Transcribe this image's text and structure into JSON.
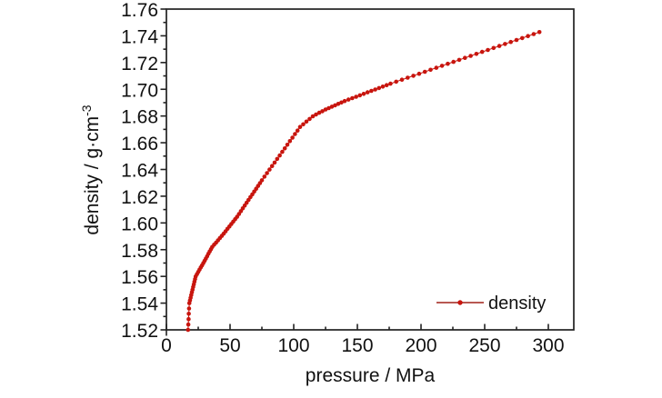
{
  "figure": {
    "background": "#ffffff",
    "frame_color": "#222222",
    "text_color": "#111111"
  },
  "chart_data": {
    "type": "scatter",
    "title": "",
    "xlabel": "pressure / MPa",
    "ylabel": "density / g·cm⁻³",
    "ylabel_base": "density / g·cm",
    "ylabel_sup": "-3",
    "xlim": [
      0,
      320
    ],
    "ylim": [
      1.52,
      1.76
    ],
    "x_major": 50,
    "x_minor": 25,
    "y_major": 0.02,
    "y_minor": 0.01,
    "grid": false,
    "x_ticks": [
      "0",
      "50",
      "100",
      "150",
      "200",
      "250",
      "300"
    ],
    "y_ticks": [
      "1.52",
      "1.54",
      "1.56",
      "1.58",
      "1.60",
      "1.62",
      "1.64",
      "1.66",
      "1.68",
      "1.70",
      "1.72",
      "1.74",
      "1.76"
    ],
    "legend": {
      "position": "bottom-right",
      "entries": [
        {
          "label": "density",
          "marker": "line-dot",
          "color": "#c8150e"
        }
      ]
    },
    "series": [
      {
        "name": "density",
        "marker_color": "#c8150e",
        "line_color": "#a02018",
        "points": [
          [
            17,
            1.52
          ],
          [
            17.2,
            1.524
          ],
          [
            17.4,
            1.528
          ],
          [
            17.6,
            1.532
          ],
          [
            17.8,
            1.536
          ],
          [
            18,
            1.54
          ],
          [
            18.5,
            1.542
          ],
          [
            19,
            1.544
          ],
          [
            19.5,
            1.546
          ],
          [
            20,
            1.548
          ],
          [
            20.5,
            1.55
          ],
          [
            21,
            1.552
          ],
          [
            21.5,
            1.554
          ],
          [
            22,
            1.556
          ],
          [
            22.5,
            1.558
          ],
          [
            23,
            1.56
          ],
          [
            24,
            1.5617
          ],
          [
            25,
            1.5633
          ],
          [
            26,
            1.565
          ],
          [
            27,
            1.5667
          ],
          [
            28,
            1.5683
          ],
          [
            29,
            1.57
          ],
          [
            30,
            1.5717
          ],
          [
            31,
            1.5734
          ],
          [
            32,
            1.5751
          ],
          [
            33,
            1.5769
          ],
          [
            34,
            1.5786
          ],
          [
            35,
            1.5803
          ],
          [
            36,
            1.582
          ],
          [
            37.5,
            1.5837
          ],
          [
            39,
            1.5853
          ],
          [
            40.5,
            1.587
          ],
          [
            42,
            1.5887
          ],
          [
            43.5,
            1.5903
          ],
          [
            45,
            1.592
          ],
          [
            46.5,
            1.5938
          ],
          [
            48,
            1.5956
          ],
          [
            49.5,
            1.5974
          ],
          [
            51,
            1.5992
          ],
          [
            52.5,
            1.601
          ],
          [
            54,
            1.6028
          ],
          [
            55.5,
            1.6046
          ],
          [
            57,
            1.6067
          ],
          [
            58.5,
            1.6088
          ],
          [
            60,
            1.6109
          ],
          [
            61.5,
            1.613
          ],
          [
            63,
            1.6151
          ],
          [
            64.5,
            1.6172
          ],
          [
            66,
            1.6193
          ],
          [
            67.5,
            1.6214
          ],
          [
            69,
            1.6235
          ],
          [
            70.5,
            1.6256
          ],
          [
            72,
            1.6277
          ],
          [
            73.5,
            1.6298
          ],
          [
            75,
            1.6319
          ],
          [
            77,
            1.6346
          ],
          [
            79,
            1.6373
          ],
          [
            81,
            1.6399
          ],
          [
            83,
            1.6426
          ],
          [
            85,
            1.6452
          ],
          [
            87,
            1.6479
          ],
          [
            89,
            1.6505
          ],
          [
            91,
            1.6532
          ],
          [
            93,
            1.6558
          ],
          [
            95,
            1.6585
          ],
          [
            97,
            1.6612
          ],
          [
            99,
            1.6638
          ],
          [
            101,
            1.6665
          ],
          [
            103,
            1.6691
          ],
          [
            105,
            1.6718
          ],
          [
            107.5,
            1.6738
          ],
          [
            110,
            1.6758
          ],
          [
            112.5,
            1.6778
          ],
          [
            115,
            1.6798
          ],
          [
            117.5,
            1.6811
          ],
          [
            120,
            1.6824
          ],
          [
            122.5,
            1.6836
          ],
          [
            125,
            1.6849
          ],
          [
            127.5,
            1.6859
          ],
          [
            130,
            1.687
          ],
          [
            132.5,
            1.688
          ],
          [
            135,
            1.6891
          ],
          [
            137.5,
            1.6901
          ],
          [
            140,
            1.6912
          ],
          [
            143,
            1.6923
          ],
          [
            146,
            1.6934
          ],
          [
            149,
            1.6944
          ],
          [
            152,
            1.6955
          ],
          [
            155,
            1.6966
          ],
          [
            158,
            1.6977
          ],
          [
            161,
            1.6988
          ],
          [
            164,
            1.6998
          ],
          [
            167,
            1.7009
          ],
          [
            170,
            1.702
          ],
          [
            173,
            1.7031
          ],
          [
            176,
            1.7042
          ],
          [
            180.5,
            1.7057
          ],
          [
            185,
            1.7072
          ],
          [
            189.5,
            1.7087
          ],
          [
            194,
            1.7101
          ],
          [
            198.5,
            1.7116
          ],
          [
            203,
            1.7131
          ],
          [
            207.5,
            1.7146
          ],
          [
            212,
            1.7161
          ],
          [
            216.5,
            1.7176
          ],
          [
            221,
            1.7191
          ],
          [
            225.5,
            1.7205
          ],
          [
            230,
            1.722
          ],
          [
            234.5,
            1.7235
          ],
          [
            239,
            1.725
          ],
          [
            243.5,
            1.7265
          ],
          [
            248,
            1.728
          ],
          [
            252.5,
            1.7294
          ],
          [
            257,
            1.7309
          ],
          [
            261.5,
            1.7324
          ],
          [
            266,
            1.7339
          ],
          [
            270.5,
            1.7354
          ],
          [
            275,
            1.7369
          ],
          [
            279.5,
            1.7383
          ],
          [
            284,
            1.7398
          ],
          [
            288.5,
            1.7413
          ],
          [
            293,
            1.7428
          ]
        ]
      }
    ]
  }
}
